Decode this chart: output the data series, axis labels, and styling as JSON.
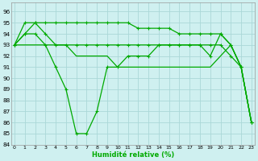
{
  "title": "",
  "xlabel": "Humidité relative (%)",
  "ylabel": "",
  "background_color": "#cff0f0",
  "grid_color": "#aad8d8",
  "line_color": "#00aa00",
  "xlim": [
    -0.3,
    23.3
  ],
  "ylim": [
    84,
    96.8
  ],
  "yticks": [
    84,
    85,
    86,
    87,
    88,
    89,
    90,
    91,
    92,
    93,
    94,
    95,
    96
  ],
  "xticks": [
    0,
    1,
    2,
    3,
    4,
    5,
    6,
    7,
    8,
    9,
    10,
    11,
    12,
    13,
    14,
    15,
    16,
    17,
    18,
    19,
    20,
    21,
    22,
    23
  ],
  "series": [
    {
      "x": [
        0,
        1,
        2,
        3,
        4,
        5,
        6,
        7,
        8,
        9,
        10,
        11,
        12,
        13,
        14,
        15,
        16,
        17,
        18,
        19,
        20,
        21,
        22,
        23
      ],
      "y": [
        93,
        95,
        95,
        95,
        95,
        95,
        95,
        95,
        95,
        95,
        95,
        95,
        94.5,
        94.5,
        94.5,
        94.5,
        94,
        94,
        94,
        94,
        94,
        93,
        91,
        86
      ],
      "marker": true
    },
    {
      "x": [
        0,
        1,
        2,
        3,
        4,
        5,
        6,
        7,
        8,
        9,
        10,
        11,
        12,
        13,
        14,
        15,
        16,
        17,
        18,
        19,
        20,
        21,
        22,
        23
      ],
      "y": [
        93,
        94,
        95,
        94,
        93,
        93,
        93,
        93,
        93,
        93,
        93,
        93,
        93,
        93,
        93,
        93,
        93,
        93,
        93,
        93,
        93,
        92,
        91,
        86
      ],
      "marker": true
    },
    {
      "x": [
        0,
        1,
        2,
        3,
        4,
        5,
        6,
        7,
        8,
        9,
        10,
        11,
        12,
        13,
        14,
        15,
        16,
        17,
        18,
        19,
        20,
        21,
        22,
        23
      ],
      "y": [
        93,
        94,
        94,
        93,
        91,
        89,
        85,
        85,
        87,
        91,
        91,
        92,
        92,
        92,
        93,
        93,
        93,
        93,
        93,
        92,
        94,
        93,
        91,
        86
      ],
      "marker": true
    },
    {
      "x": [
        0,
        1,
        2,
        3,
        4,
        5,
        6,
        7,
        8,
        9,
        10,
        11,
        12,
        13,
        14,
        15,
        16,
        17,
        18,
        19,
        20,
        21,
        22,
        23
      ],
      "y": [
        93,
        93,
        93,
        93,
        93,
        93,
        92,
        92,
        92,
        92,
        91,
        91,
        91,
        91,
        91,
        91,
        91,
        91,
        91,
        91,
        92,
        93,
        91,
        86
      ],
      "marker": false
    }
  ]
}
